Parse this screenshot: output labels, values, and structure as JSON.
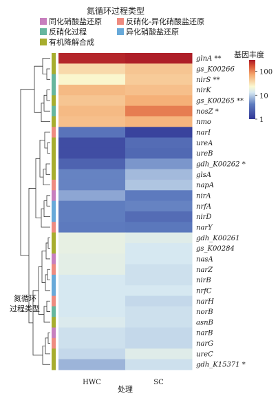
{
  "chart_data": {
    "type": "heatmap",
    "legend_title": "氮循环过程类型",
    "process_types": [
      {
        "name": "同化硝酸盐还原",
        "color": "#c77fbe"
      },
      {
        "name": "反硝化-异化硝酸盐还原",
        "color": "#ee8b80"
      },
      {
        "name": "反硝化过程",
        "color": "#66b69e"
      },
      {
        "name": "异化硝酸盐还原",
        "color": "#68a9d9"
      },
      {
        "name": "有机降解合成",
        "color": "#a7ad2e"
      }
    ],
    "colorbar": {
      "title": "基因丰度",
      "ticks": [
        "100",
        "10",
        "1"
      ],
      "scale": "log"
    },
    "columns": [
      "HWC",
      "SC"
    ],
    "xlabel": "处理",
    "side_label": [
      "氮循环",
      "过程类型"
    ],
    "rows": [
      {
        "gene": "glnA **",
        "type": "有机降解合成",
        "values": [
          260,
          280
        ]
      },
      {
        "gene": "gs_K00266",
        "type": "有机降解合成",
        "values": [
          36,
          48
        ]
      },
      {
        "gene": "nirS **",
        "type": "反硝化过程",
        "values": [
          24,
          44
        ]
      },
      {
        "gene": "nirK",
        "type": "反硝化过程",
        "values": [
          56,
          52
        ]
      },
      {
        "gene": "gs_K00265 **",
        "type": "有机降解合成",
        "values": [
          48,
          64
        ]
      },
      {
        "gene": "nosZ *",
        "type": "反硝化过程",
        "values": [
          56,
          110
        ]
      },
      {
        "gene": "nmo",
        "type": "有机降解合成",
        "values": [
          52,
          60
        ]
      },
      {
        "gene": "narI",
        "type": "反硝化-异化硝酸盐还原",
        "values": [
          3.5,
          1.3
        ]
      },
      {
        "gene": "ureA",
        "type": "有机降解合成",
        "values": [
          1.6,
          3.0
        ]
      },
      {
        "gene": "ureB",
        "type": "有机降解合成",
        "values": [
          1.6,
          2.8
        ]
      },
      {
        "gene": "gdh_K00262 *",
        "type": "有机降解合成",
        "values": [
          2.5,
          5.5
        ]
      },
      {
        "gene": "glsA",
        "type": "有机降解合成",
        "values": [
          4.5,
          8.0
        ]
      },
      {
        "gene": "napA",
        "type": "反硝化-异化硝酸盐还原",
        "values": [
          4.5,
          9.0
        ]
      },
      {
        "gene": "nirA",
        "type": "同化硝酸盐还原",
        "values": [
          6.5,
          4.0
        ]
      },
      {
        "gene": "nrfA",
        "type": "异化硝酸盐还原",
        "values": [
          4.2,
          4.5
        ]
      },
      {
        "gene": "nirD",
        "type": "异化硝酸盐还原",
        "values": [
          4.2,
          3.0
        ]
      },
      {
        "gene": "narY",
        "type": "反硝化-异化硝酸盐还原",
        "values": [
          4.0,
          3.8
        ]
      },
      {
        "gene": "gdh_K00261",
        "type": "有机降解合成",
        "values": [
          17,
          15
        ]
      },
      {
        "gene": "gs_K00284",
        "type": "有机降解合成",
        "values": [
          17,
          13
        ]
      },
      {
        "gene": "nasA",
        "type": "同化硝酸盐还原",
        "values": [
          16,
          13
        ]
      },
      {
        "gene": "narZ",
        "type": "反硝化-异化硝酸盐还原",
        "values": [
          16,
          12
        ]
      },
      {
        "gene": "nirB",
        "type": "异化硝酸盐还原",
        "values": [
          13,
          12
        ]
      },
      {
        "gene": "nrfC",
        "type": "异化硝酸盐还原",
        "values": [
          13,
          13
        ]
      },
      {
        "gene": "narH",
        "type": "反硝化-异化硝酸盐还原",
        "values": [
          13,
          11
        ]
      },
      {
        "gene": "norB",
        "type": "反硝化过程",
        "values": [
          13,
          12
        ]
      },
      {
        "gene": "asnB",
        "type": "有机降解合成",
        "values": [
          14,
          12
        ]
      },
      {
        "gene": "narB",
        "type": "同化硝酸盐还原",
        "values": [
          12,
          11
        ]
      },
      {
        "gene": "narG",
        "type": "反硝化-异化硝酸盐还原",
        "values": [
          12,
          11
        ]
      },
      {
        "gene": "ureC",
        "type": "有机降解合成",
        "values": [
          11,
          15
        ]
      },
      {
        "gene": "gdh_K15371 *",
        "type": "有机降解合成",
        "values": [
          7.5,
          12
        ]
      }
    ]
  }
}
